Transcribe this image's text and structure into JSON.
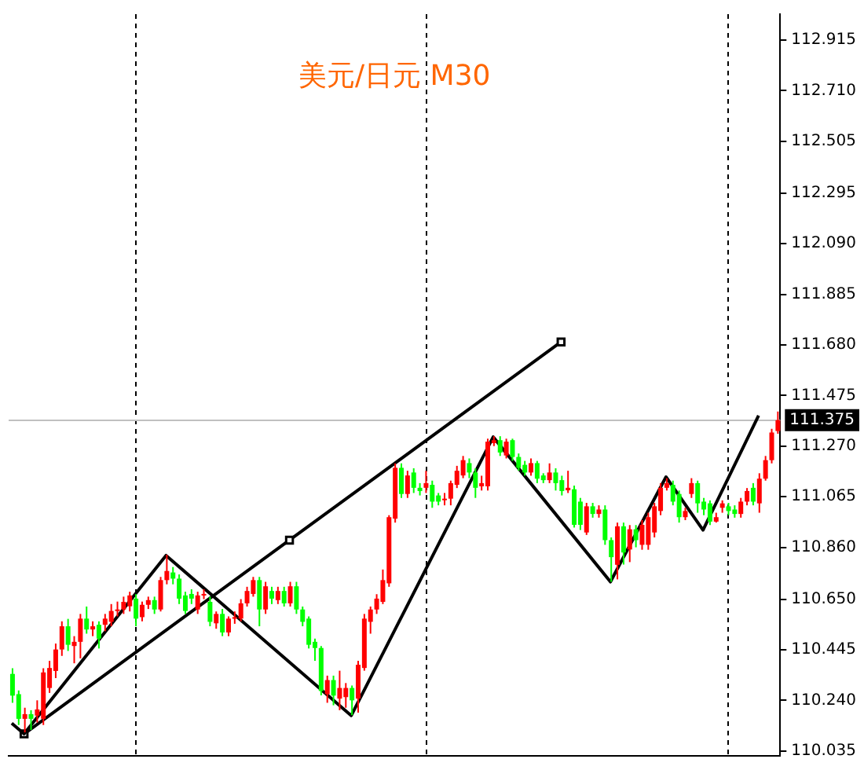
{
  "chart_data": {
    "type": "candlestick",
    "title": "美元/日元 M30",
    "categories": [
      null,
      null,
      null,
      null,
      null,
      null,
      null,
      null,
      null,
      null,
      null,
      null,
      null,
      null,
      null,
      null,
      null,
      null,
      null,
      null,
      null,
      null,
      null,
      null,
      null,
      null,
      null,
      null,
      null,
      null,
      null,
      null,
      null,
      null,
      null,
      null,
      null,
      null,
      null,
      null,
      null,
      null,
      null,
      null,
      null,
      null,
      null,
      null,
      null,
      null,
      null,
      null,
      null,
      null,
      null,
      null,
      null,
      null,
      null,
      null,
      null,
      null,
      null,
      null,
      null,
      null,
      null,
      null,
      null,
      null,
      null,
      null,
      null,
      null,
      null,
      null,
      null,
      null,
      null,
      null,
      null,
      null,
      null,
      null,
      null,
      null,
      null,
      null,
      null,
      null,
      null,
      null,
      null,
      null,
      null,
      null,
      null,
      null,
      null,
      null,
      null,
      null,
      null,
      null,
      null,
      null,
      null,
      null,
      null,
      null,
      null,
      null,
      null,
      null,
      null,
      null,
      null,
      null,
      null,
      null,
      null,
      null,
      null,
      null,
      null
    ],
    "ohlc": [
      [
        110.347,
        110.37,
        110.23,
        110.259
      ],
      [
        110.265,
        110.28,
        110.14,
        110.165
      ],
      [
        110.165,
        110.21,
        110.11,
        110.184
      ],
      [
        110.184,
        110.2,
        110.12,
        110.165
      ],
      [
        110.178,
        110.24,
        110.15,
        110.203
      ],
      [
        110.165,
        110.37,
        110.14,
        110.353
      ],
      [
        110.29,
        110.4,
        110.27,
        110.371
      ],
      [
        110.359,
        110.47,
        110.33,
        110.446
      ],
      [
        110.446,
        110.56,
        110.42,
        110.54
      ],
      [
        110.54,
        110.57,
        110.44,
        110.465
      ],
      [
        110.46,
        110.5,
        110.39,
        110.477
      ],
      [
        110.477,
        110.59,
        110.41,
        110.571
      ],
      [
        110.571,
        110.62,
        110.51,
        110.527
      ],
      [
        110.527,
        110.56,
        110.5,
        110.54
      ],
      [
        110.546,
        110.56,
        110.45,
        110.49
      ],
      [
        110.546,
        110.59,
        110.52,
        110.571
      ],
      [
        110.558,
        110.63,
        110.54,
        110.602
      ],
      [
        110.602,
        110.64,
        110.58,
        110.608
      ],
      [
        110.608,
        110.66,
        110.59,
        110.639
      ],
      [
        110.621,
        110.68,
        110.6,
        110.665
      ],
      [
        110.652,
        110.67,
        110.54,
        110.571
      ],
      [
        110.577,
        110.64,
        110.56,
        110.627
      ],
      [
        110.627,
        110.66,
        110.61,
        110.646
      ],
      [
        110.646,
        110.66,
        110.59,
        110.608
      ],
      [
        110.608,
        110.74,
        110.6,
        110.727
      ],
      [
        110.727,
        110.83,
        110.71,
        110.764
      ],
      [
        110.758,
        110.78,
        110.71,
        110.733
      ],
      [
        110.733,
        110.75,
        110.63,
        110.652
      ],
      [
        110.665,
        110.68,
        110.59,
        110.602
      ],
      [
        110.671,
        110.69,
        110.63,
        110.652
      ],
      [
        110.608,
        110.68,
        110.59,
        110.665
      ],
      [
        110.665,
        110.69,
        110.65,
        110.671
      ],
      [
        110.639,
        110.66,
        110.54,
        110.558
      ],
      [
        110.552,
        110.6,
        110.53,
        110.59
      ],
      [
        110.59,
        110.61,
        110.5,
        110.515
      ],
      [
        110.515,
        110.58,
        110.5,
        110.571
      ],
      [
        110.571,
        110.6,
        110.55,
        110.577
      ],
      [
        110.571,
        110.65,
        110.56,
        110.633
      ],
      [
        110.633,
        110.7,
        110.62,
        110.683
      ],
      [
        110.671,
        110.74,
        110.66,
        110.727
      ],
      [
        110.727,
        110.74,
        110.54,
        110.608
      ],
      [
        110.608,
        110.72,
        110.59,
        110.702
      ],
      [
        110.683,
        110.7,
        110.63,
        110.652
      ],
      [
        110.646,
        110.7,
        110.63,
        110.683
      ],
      [
        110.683,
        110.7,
        110.62,
        110.633
      ],
      [
        110.633,
        110.72,
        110.62,
        110.702
      ],
      [
        110.702,
        110.72,
        110.59,
        110.608
      ],
      [
        110.608,
        110.62,
        110.54,
        110.558
      ],
      [
        110.571,
        110.58,
        110.45,
        110.465
      ],
      [
        110.477,
        110.49,
        110.4,
        110.452
      ],
      [
        110.452,
        110.46,
        110.26,
        110.278
      ],
      [
        110.265,
        110.34,
        110.23,
        110.322
      ],
      [
        110.322,
        110.34,
        110.22,
        110.259
      ],
      [
        110.247,
        110.36,
        110.2,
        110.29
      ],
      [
        110.253,
        110.31,
        110.21,
        110.29
      ],
      [
        110.29,
        110.3,
        110.18,
        110.24
      ],
      [
        110.247,
        110.4,
        110.19,
        110.384
      ],
      [
        110.371,
        110.59,
        110.36,
        110.571
      ],
      [
        110.558,
        110.62,
        110.51,
        110.608
      ],
      [
        110.608,
        110.67,
        110.59,
        110.652
      ],
      [
        110.639,
        110.77,
        110.63,
        110.727
      ],
      [
        110.714,
        110.99,
        110.7,
        110.982
      ],
      [
        110.976,
        111.2,
        110.96,
        111.182
      ],
      [
        111.182,
        111.2,
        111.06,
        111.076
      ],
      [
        111.076,
        111.17,
        111.06,
        111.151
      ],
      [
        111.163,
        111.18,
        111.08,
        111.101
      ],
      [
        111.101,
        111.12,
        111.07,
        111.088
      ],
      [
        111.101,
        111.17,
        111.08,
        111.12
      ],
      [
        111.113,
        111.13,
        111.02,
        111.045
      ],
      [
        111.07,
        111.08,
        111.03,
        111.045
      ],
      [
        111.051,
        111.08,
        111.03,
        111.057
      ],
      [
        111.057,
        111.13,
        111.03,
        111.12
      ],
      [
        111.113,
        111.19,
        111.1,
        111.17
      ],
      [
        111.151,
        111.23,
        111.14,
        111.213
      ],
      [
        111.201,
        111.22,
        111.14,
        111.163
      ],
      [
        111.163,
        111.18,
        111.06,
        111.101
      ],
      [
        111.107,
        111.15,
        111.09,
        111.12
      ],
      [
        111.107,
        111.3,
        111.09,
        111.288
      ],
      [
        111.282,
        111.31,
        111.27,
        111.294
      ],
      [
        111.294,
        111.31,
        111.23,
        111.244
      ],
      [
        111.232,
        111.3,
        111.22,
        111.288
      ],
      [
        111.294,
        111.3,
        111.21,
        111.226
      ],
      [
        111.226,
        111.24,
        111.17,
        111.182
      ],
      [
        111.194,
        111.21,
        111.15,
        111.163
      ],
      [
        111.163,
        111.22,
        111.15,
        111.201
      ],
      [
        111.201,
        111.21,
        111.12,
        111.138
      ],
      [
        111.151,
        111.16,
        111.12,
        111.132
      ],
      [
        111.132,
        111.2,
        111.12,
        111.163
      ],
      [
        111.163,
        111.18,
        111.09,
        111.12
      ],
      [
        111.132,
        111.15,
        111.07,
        111.088
      ],
      [
        111.091,
        111.17,
        111.08,
        111.101
      ],
      [
        111.095,
        111.11,
        110.94,
        110.951
      ],
      [
        111.045,
        111.06,
        110.93,
        110.951
      ],
      [
        110.92,
        111.04,
        110.91,
        111.026
      ],
      [
        111.026,
        111.04,
        110.98,
        110.995
      ],
      [
        110.995,
        111.03,
        110.98,
        111.013
      ],
      [
        111.013,
        111.03,
        110.87,
        110.889
      ],
      [
        110.889,
        110.9,
        110.72,
        110.82
      ],
      [
        110.789,
        110.96,
        110.73,
        110.945
      ],
      [
        110.945,
        110.96,
        110.79,
        110.839
      ],
      [
        110.851,
        110.95,
        110.8,
        110.933
      ],
      [
        110.933,
        110.95,
        110.86,
        110.889
      ],
      [
        110.87,
        110.97,
        110.85,
        110.951
      ],
      [
        110.87,
        111.0,
        110.85,
        110.982
      ],
      [
        110.92,
        111.04,
        110.9,
        111.026
      ],
      [
        111.007,
        111.12,
        110.99,
        111.101
      ],
      [
        111.101,
        111.14,
        111.09,
        111.12
      ],
      [
        111.113,
        111.13,
        111.03,
        111.045
      ],
      [
        111.076,
        111.09,
        110.96,
        110.982
      ],
      [
        110.982,
        111.02,
        110.97,
        111.007
      ],
      [
        111.076,
        111.14,
        111.06,
        111.12
      ],
      [
        111.12,
        111.13,
        111.0,
        111.038
      ],
      [
        111.045,
        111.06,
        110.99,
        111.013
      ],
      [
        111.038,
        111.05,
        110.95,
        110.964
      ],
      [
        110.964,
        111.0,
        110.96,
        110.982
      ],
      [
        111.02,
        111.05,
        111.0,
        111.038
      ],
      [
        111.026,
        111.04,
        110.99,
        111.007
      ],
      [
        111.013,
        111.03,
        110.98,
        110.995
      ],
      [
        110.995,
        111.06,
        110.98,
        111.045
      ],
      [
        111.045,
        111.1,
        111.03,
        111.088
      ],
      [
        111.101,
        111.12,
        111.03,
        111.045
      ],
      [
        111.038,
        111.16,
        111.0,
        111.138
      ],
      [
        111.138,
        111.23,
        111.13,
        111.213
      ],
      [
        111.213,
        111.34,
        111.2,
        111.325
      ],
      [
        111.331,
        111.41,
        111.32,
        111.375
      ]
    ],
    "colors": [
      "#00ff00",
      "#00ff00",
      "#ff0000",
      "#00ff00",
      "#ff0000",
      "#ff0000",
      "#ff0000",
      "#ff0000",
      "#ff0000",
      "#00ff00",
      "#ff0000",
      "#ff0000",
      "#00ff00",
      "#ff0000",
      "#00ff00",
      "#ff0000",
      "#ff0000",
      "#ff0000",
      "#ff0000",
      "#ff0000",
      "#00ff00",
      "#ff0000",
      "#ff0000",
      "#00ff00",
      "#ff0000",
      "#ff0000",
      "#00ff00",
      "#00ff00",
      "#00ff00",
      "#00ff00",
      "#ff0000",
      "#ff0000",
      "#00ff00",
      "#ff0000",
      "#00ff00",
      "#ff0000",
      "#ff0000",
      "#ff0000",
      "#ff0000",
      "#ff0000",
      "#00ff00",
      "#ff0000",
      "#00ff00",
      "#ff0000",
      "#00ff00",
      "#ff0000",
      "#00ff00",
      "#00ff00",
      "#00ff00",
      "#00ff00",
      "#00ff00",
      "#ff0000",
      "#00ff00",
      "#ff0000",
      "#ff0000",
      "#00ff00",
      "#ff0000",
      "#ff0000",
      "#ff0000",
      "#ff0000",
      "#ff0000",
      "#ff0000",
      "#ff0000",
      "#00ff00",
      "#ff0000",
      "#00ff00",
      "#00ff00",
      "#ff0000",
      "#00ff00",
      "#00ff00",
      "#ff0000",
      "#ff0000",
      "#ff0000",
      "#ff0000",
      "#00ff00",
      "#00ff00",
      "#ff0000",
      "#ff0000",
      "#ff0000",
      "#00ff00",
      "#ff0000",
      "#00ff00",
      "#00ff00",
      "#00ff00",
      "#ff0000",
      "#00ff00",
      "#00ff00",
      "#ff0000",
      "#00ff00",
      "#00ff00",
      "#ff0000",
      "#00ff00",
      "#00ff00",
      "#ff0000",
      "#00ff00",
      "#ff0000",
      "#00ff00",
      "#00ff00",
      "#ff0000",
      "#00ff00",
      "#ff0000",
      "#00ff00",
      "#ff0000",
      "#ff0000",
      "#ff0000",
      "#ff0000",
      "#ff0000",
      "#00ff00",
      "#00ff00",
      "#ff0000",
      "#ff0000",
      "#00ff00",
      "#00ff00",
      "#00ff00",
      "#ff0000",
      "#ff0000",
      "#00ff00",
      "#00ff00",
      "#ff0000",
      "#ff0000",
      "#00ff00",
      "#ff0000",
      "#ff0000",
      "#ff0000",
      "#ff0000"
    ],
    "series": [
      {
        "type": "line",
        "color": "#000000",
        "marker": "none",
        "values": [
          110.147,
          null,
          110.104,
          null,
          null,
          null,
          null,
          null,
          null,
          null,
          null,
          null,
          null,
          null,
          null,
          null,
          null,
          null,
          null,
          null,
          null,
          null,
          null,
          null,
          null,
          110.827,
          null,
          null,
          null,
          null,
          null,
          null,
          null,
          null,
          null,
          null,
          null,
          null,
          null,
          null,
          null,
          null,
          null,
          null,
          null,
          null,
          null,
          null,
          null,
          null,
          null,
          null,
          null,
          null,
          null,
          110.178,
          null,
          null,
          null,
          null,
          null,
          null,
          null,
          null,
          null,
          null,
          null,
          null,
          null,
          null,
          null,
          null,
          null,
          null,
          null,
          null,
          null,
          null,
          111.307,
          null,
          null,
          null,
          null,
          null,
          null,
          null,
          null,
          null,
          null,
          null,
          null,
          null,
          null,
          null,
          null,
          null,
          null,
          110.72,
          null,
          null,
          null,
          null,
          null,
          null,
          null,
          null,
          111.145,
          null,
          null,
          null,
          null,
          null,
          110.93,
          null,
          null,
          null,
          null,
          null,
          null,
          null,
          null,
          111.394,
          null,
          null,
          null
        ]
      },
      {
        "type": "line",
        "color": "#000000",
        "marker": "square",
        "values": [
          null,
          null,
          110.104,
          null,
          null,
          null,
          null,
          null,
          null,
          null,
          null,
          null,
          null,
          null,
          null,
          null,
          null,
          null,
          null,
          null,
          null,
          null,
          null,
          null,
          null,
          null,
          null,
          null,
          null,
          null,
          null,
          null,
          null,
          null,
          null,
          null,
          null,
          null,
          null,
          null,
          null,
          null,
          null,
          null,
          null,
          110.889,
          null,
          null,
          null,
          null,
          null,
          null,
          null,
          null,
          null,
          null,
          null,
          null,
          null,
          null,
          null,
          null,
          null,
          null,
          null,
          null,
          null,
          null,
          null,
          null,
          null,
          null,
          null,
          null,
          null,
          null,
          null,
          null,
          null,
          null,
          null,
          null,
          null,
          null,
          null,
          null,
          null,
          null,
          null,
          111.692,
          null,
          null,
          null,
          null,
          null,
          null,
          null,
          null,
          null,
          null,
          null,
          null,
          null,
          null,
          null,
          null,
          null,
          null,
          null,
          null,
          null,
          null,
          null,
          null,
          null,
          null,
          null,
          null,
          null,
          null,
          null,
          null,
          null,
          null,
          null
        ]
      }
    ],
    "ylim": [
      110.015,
      113.02
    ],
    "yticks": [
      {
        "value": 110.035,
        "label": "110.035"
      },
      {
        "value": 110.24,
        "label": "110.240"
      },
      {
        "value": 110.445,
        "label": "110.445"
      },
      {
        "value": 110.65,
        "label": "110.650"
      },
      {
        "value": 110.86,
        "label": "110.860"
      },
      {
        "value": 111.065,
        "label": "111.065"
      },
      {
        "value": 111.27,
        "label": "111.270"
      },
      {
        "value": 111.475,
        "label": "111.475"
      },
      {
        "value": 111.68,
        "label": "111.680"
      },
      {
        "value": 111.885,
        "label": "111.885"
      },
      {
        "value": 112.09,
        "label": "112.090"
      },
      {
        "value": 112.295,
        "label": "112.295"
      },
      {
        "value": 112.505,
        "label": "112.505"
      },
      {
        "value": 112.71,
        "label": "112.710"
      },
      {
        "value": 112.915,
        "label": "112.915"
      }
    ],
    "ref_lines": [
      {
        "axis": "y",
        "value": 111.375,
        "label": "111.375",
        "color": "#c0c0c0"
      }
    ],
    "tick_labels": "y",
    "grid": false,
    "legend": false
  }
}
